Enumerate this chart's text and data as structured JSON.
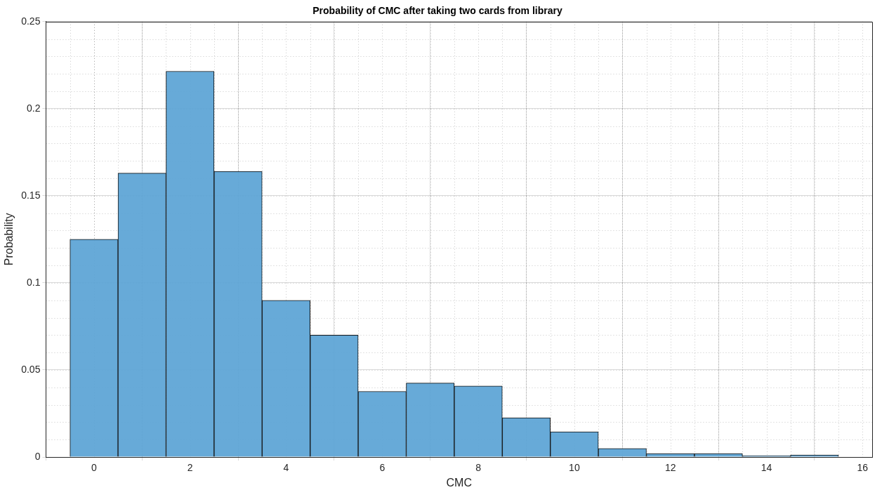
{
  "chart_data": {
    "type": "histogram",
    "title": "Probability of CMC after taking two cards from library",
    "xlabel": "CMC",
    "ylabel": "Probability",
    "bins": [
      -0.5,
      0.5,
      1.5,
      2.5,
      3.5,
      4.5,
      5.5,
      6.5,
      7.5,
      8.5,
      9.5,
      10.5,
      11.5,
      12.5,
      13.5,
      14.5,
      15.5
    ],
    "values": [
      0.125,
      0.163,
      0.2215,
      0.164,
      0.09,
      0.07,
      0.0377,
      0.0425,
      0.0408,
      0.0225,
      0.0145,
      0.0049,
      0.002,
      0.002,
      0.0008,
      0.0012
    ],
    "color": "#5fa5d6",
    "xlim": [
      -1,
      16.2
    ],
    "xticks": [
      0,
      2,
      4,
      6,
      8,
      10,
      12,
      14,
      16
    ],
    "ylim": [
      0,
      0.25
    ],
    "yticks": [
      0,
      0.05,
      0.1,
      0.15,
      0.2,
      0.25
    ],
    "grid": true,
    "legend": false
  }
}
